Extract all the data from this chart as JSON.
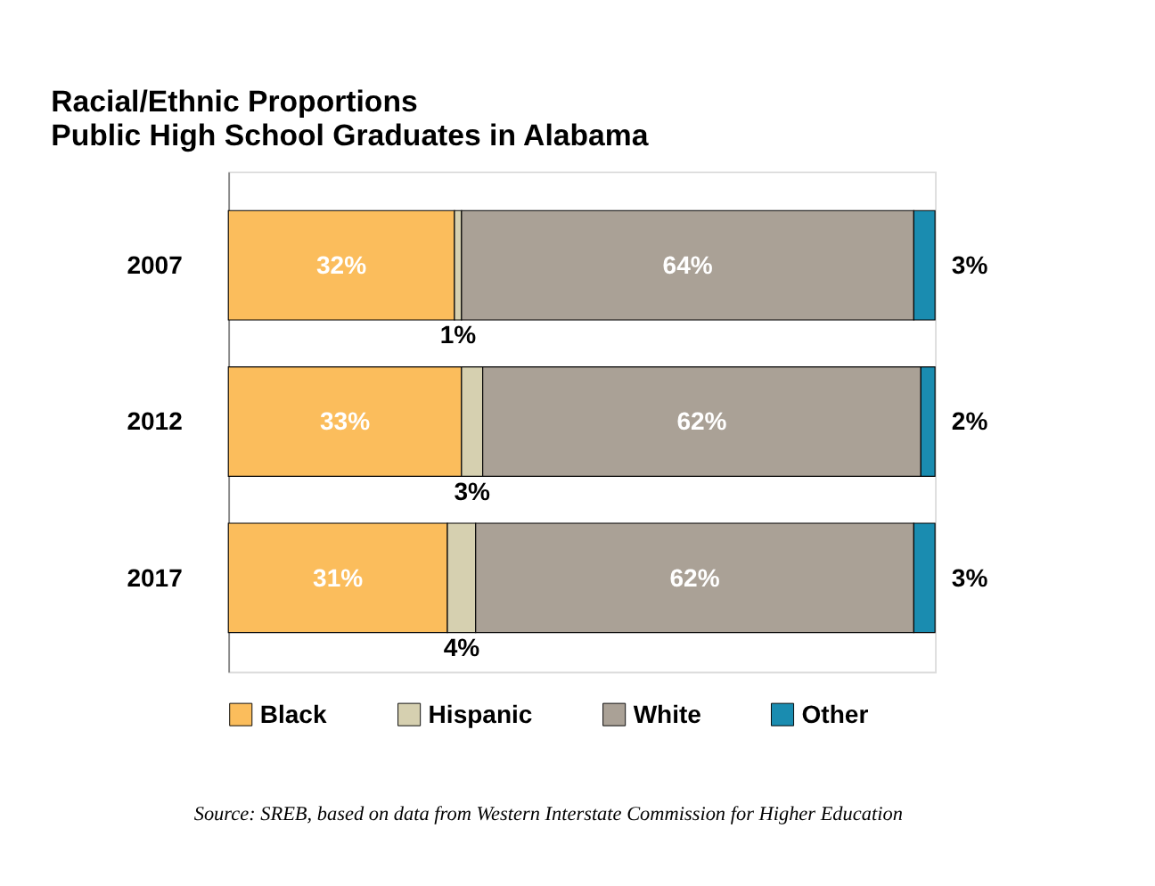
{
  "chart_data": {
    "type": "bar",
    "orientation": "horizontal",
    "stacked": true,
    "title": "Racial/Ethnic Proportions\nPublic High School Graduates in Alabama",
    "categories": [
      "2007",
      "2012",
      "2017"
    ],
    "series": [
      {
        "name": "Black",
        "color": "#fbbd5c",
        "values": [
          32,
          33,
          31
        ],
        "value_labels": [
          "32%",
          "33%",
          "31%"
        ]
      },
      {
        "name": "Hispanic",
        "color": "#d6d0b0",
        "values": [
          1,
          3,
          4
        ],
        "value_labels": [
          "1%",
          "3%",
          "4%"
        ]
      },
      {
        "name": "White",
        "color": "#aaa196",
        "values": [
          64,
          62,
          62
        ],
        "value_labels": [
          "64%",
          "62%",
          "62%"
        ]
      },
      {
        "name": "Other",
        "color": "#1a8cb0",
        "values": [
          3,
          2,
          3
        ],
        "value_labels": [
          "3%",
          "2%",
          "3%"
        ]
      }
    ],
    "xlim": [
      0,
      100
    ],
    "tick_labels": "y",
    "grid": false,
    "legend": "bottom",
    "annotations": [
      "Source:  SREB, based on data from Western Interstate Commission for Higher Education"
    ]
  }
}
